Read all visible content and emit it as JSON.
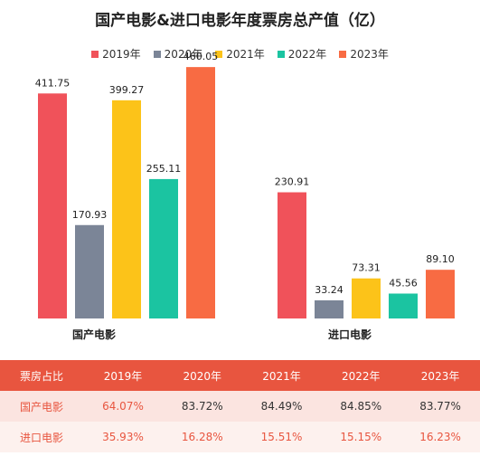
{
  "chart_data": {
    "type": "bar",
    "title": "国产电影&进口电影年度票房总产值（亿）",
    "categories": [
      "国产电影",
      "进口电影"
    ],
    "series": [
      {
        "name": "2019年",
        "color": "#f0525a",
        "values": [
          411.75,
          230.91
        ],
        "labels": [
          "411.75",
          "230.91"
        ]
      },
      {
        "name": "2020年",
        "color": "#7b8597",
        "values": [
          170.93,
          33.24
        ],
        "labels": [
          "170.93",
          "33.24"
        ]
      },
      {
        "name": "2021年",
        "color": "#fcc319",
        "values": [
          399.27,
          73.31
        ],
        "labels": [
          "399.27",
          "73.31"
        ]
      },
      {
        "name": "2022年",
        "color": "#1bc4a1",
        "values": [
          255.11,
          45.56
        ],
        "labels": [
          "255.11",
          "45.56"
        ]
      },
      {
        "name": "2023年",
        "color": "#f86b43",
        "values": [
          460.05,
          89.1
        ],
        "labels": [
          "460.05",
          "89.10"
        ]
      }
    ],
    "xlabel": "",
    "ylabel": "",
    "ylim": [
      0,
      500
    ],
    "grid": false,
    "legend": "top"
  },
  "share_table": {
    "header": [
      "票房占比",
      "2019年",
      "2020年",
      "2021年",
      "2022年",
      "2023年"
    ],
    "rows": [
      {
        "label": "国产电影",
        "values": [
          "64.07%",
          "83.72%",
          "84.49%",
          "84.85%",
          "83.77%"
        ]
      },
      {
        "label": "进口电影",
        "values": [
          "35.93%",
          "16.28%",
          "15.51%",
          "15.15%",
          "16.23%"
        ]
      }
    ]
  }
}
